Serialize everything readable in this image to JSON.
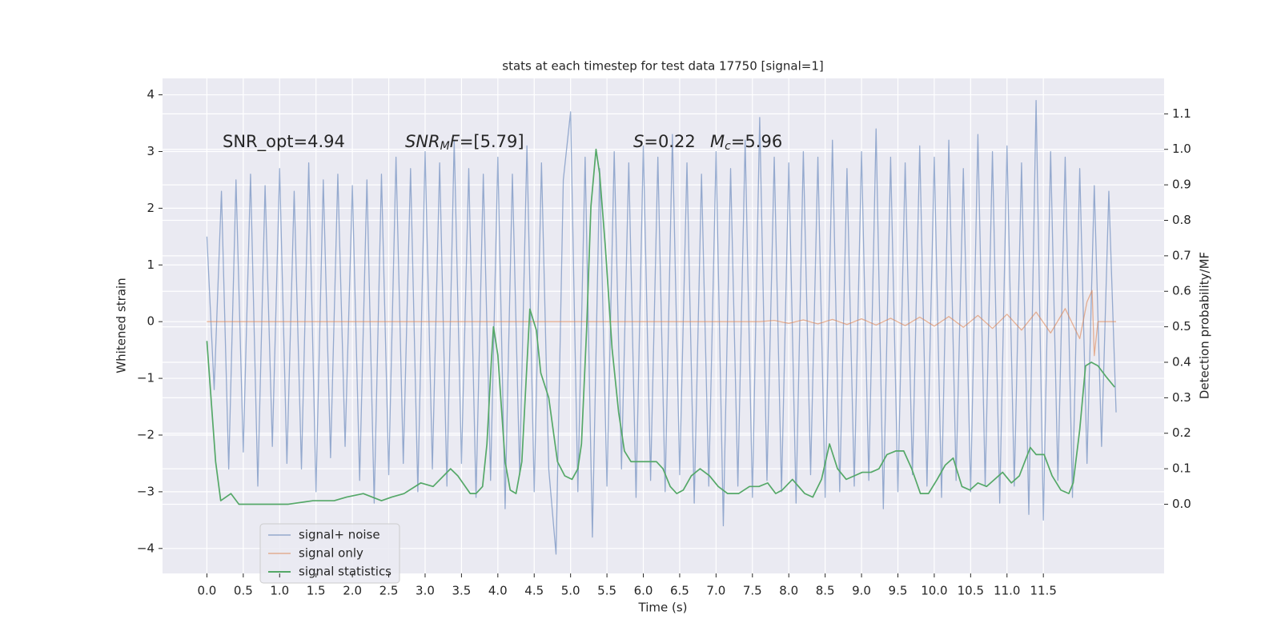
{
  "chart_data": {
    "type": "line",
    "title": "stats at each timestep for test data 17750 [signal=1]",
    "xlabel": "Time (s)",
    "ylabel": "Whitened strain",
    "y2label": "Detection probability/MF",
    "xlim": [
      -0.61,
      13.16
    ],
    "ylim": [
      -4.44,
      4.29
    ],
    "y2lim": [
      -0.195,
      1.2
    ],
    "grid": true,
    "legend_loc": "lower left",
    "xticks": [
      {
        "value": 0,
        "label": "0.0"
      },
      0.5,
      {
        "value": 1,
        "label": "1.0"
      },
      1.5,
      {
        "value": 2,
        "label": "2.0"
      },
      2.5,
      {
        "value": 3,
        "label": "3.0"
      },
      3.5,
      {
        "value": 4,
        "label": "4.0"
      },
      4.5,
      {
        "value": 5,
        "label": "5.0"
      },
      5.5,
      {
        "value": 6,
        "label": "6.0"
      },
      6.5,
      {
        "value": 7,
        "label": "7.0"
      },
      7.5,
      {
        "value": 8,
        "label": "8.0"
      },
      8.5,
      {
        "value": 9,
        "label": "9.0"
      },
      9.5,
      {
        "value": 10,
        "label": "10.0"
      },
      10.5,
      {
        "value": 11,
        "label": "11.0"
      },
      11.5
    ],
    "yticks": [
      {
        "value": -4,
        "label": "−4"
      },
      {
        "value": -3,
        "label": "−3"
      },
      {
        "value": -2,
        "label": "−2"
      },
      {
        "value": -1,
        "label": "−1"
      },
      0,
      1,
      2,
      3,
      4
    ],
    "y2ticks": [
      {
        "value": 0,
        "label": "0.0"
      },
      0.1,
      0.2,
      0.3,
      0.4,
      0.5,
      0.6,
      0.7,
      0.8,
      0.9,
      {
        "value": 1,
        "label": "1.0"
      },
      1.1
    ],
    "annotations": [
      [
        {
          "text": "SNR_opt=4.94",
          "italic": false,
          "sub": false
        }
      ],
      [
        {
          "text": "SNR",
          "italic": true,
          "sub": false
        },
        {
          "text": "M",
          "italic": true,
          "sub": true
        },
        {
          "text": "F",
          "italic": true,
          "sub": false
        },
        {
          "text": "=[5.79]",
          "italic": false,
          "sub": false
        }
      ],
      [
        {
          "text": "S",
          "italic": true,
          "sub": false
        },
        {
          "text": "=0.22",
          "italic": false,
          "sub": false
        }
      ],
      [
        {
          "text": "M",
          "italic": true,
          "sub": false
        },
        {
          "text": "c",
          "italic": true,
          "sub": true
        },
        {
          "text": "=5.96",
          "italic": false,
          "sub": false
        }
      ]
    ],
    "series": [
      {
        "name": "signal+ noise",
        "color": "#4c72b0",
        "axis": "y",
        "x": [
          0,
          0.1,
          0.2,
          0.3,
          0.4,
          0.5,
          0.6,
          0.7,
          0.8,
          0.9,
          1,
          1.1,
          1.2,
          1.3,
          1.4,
          1.5,
          1.6,
          1.7,
          1.8,
          1.9,
          2,
          2.1,
          2.2,
          2.3,
          2.4,
          2.5,
          2.6,
          2.7,
          2.8,
          2.9,
          3,
          3.1,
          3.2,
          3.3,
          3.4,
          3.5,
          3.6,
          3.7,
          3.8,
          3.9,
          4,
          4.1,
          4.2,
          4.3,
          4.4,
          4.5,
          4.6,
          4.7,
          4.8,
          4.9,
          5,
          5.1,
          5.2,
          5.3,
          5.4,
          5.5,
          5.6,
          5.7,
          5.8,
          5.9,
          6,
          6.1,
          6.2,
          6.3,
          6.4,
          6.5,
          6.6,
          6.7,
          6.8,
          6.9,
          7,
          7.1,
          7.2,
          7.3,
          7.4,
          7.5,
          7.6,
          7.7,
          7.8,
          7.9,
          8,
          8.1,
          8.2,
          8.3,
          8.4,
          8.5,
          8.6,
          8.7,
          8.8,
          8.9,
          9,
          9.1,
          9.2,
          9.3,
          9.4,
          9.5,
          9.6,
          9.7,
          9.8,
          9.9,
          10,
          10.1,
          10.2,
          10.3,
          10.4,
          10.5,
          10.6,
          10.7,
          10.8,
          10.9,
          11,
          11.1,
          11.2,
          11.3,
          11.4,
          11.5,
          11.6,
          11.7,
          11.8,
          11.9,
          12,
          12.1,
          12.2,
          12.3,
          12.4,
          12.5
        ],
        "values": [
          1.5,
          -1.2,
          2.3,
          -2.6,
          2.5,
          -2.3,
          2.6,
          -2.9,
          2.4,
          -2.2,
          2.7,
          -2.5,
          2.3,
          -2.6,
          2.8,
          -3.0,
          2.5,
          -2.4,
          2.6,
          -2.2,
          2.4,
          -2.8,
          2.5,
          -3.2,
          2.6,
          -2.7,
          2.9,
          -2.5,
          2.7,
          -3.0,
          3.0,
          -2.6,
          2.8,
          -2.9,
          3.2,
          -2.5,
          2.7,
          -3.1,
          2.6,
          -2.8,
          2.9,
          -3.3,
          2.6,
          -2.7,
          3.1,
          -3.0,
          2.8,
          -2.6,
          -4.1,
          2.5,
          3.7,
          -3.0,
          2.9,
          -3.8,
          2.7,
          -2.9,
          3.0,
          -2.6,
          2.8,
          -3.1,
          3.1,
          -2.8,
          2.9,
          -3.0,
          3.3,
          -2.7,
          2.8,
          -3.2,
          2.6,
          -2.9,
          3.0,
          -3.6,
          2.7,
          -2.9,
          3.2,
          -3.1,
          3.6,
          -2.8,
          2.9,
          -3.0,
          2.8,
          -3.2,
          3.0,
          -2.7,
          2.9,
          -3.1,
          3.2,
          -3.0,
          2.7,
          -2.9,
          3.0,
          -2.8,
          3.4,
          -3.3,
          2.9,
          -3.0,
          2.8,
          -2.7,
          3.1,
          -2.9,
          2.9,
          -3.1,
          3.2,
          -2.8,
          2.7,
          -3.0,
          3.3,
          -2.9,
          3.0,
          -3.2,
          3.1,
          -2.9,
          2.8,
          -3.4,
          3.9,
          -3.5,
          3.0,
          -2.8,
          2.9,
          -3.1,
          2.7,
          -2.5,
          2.4,
          -2.2,
          2.3,
          -1.6
        ]
      },
      {
        "name": "signal only",
        "color": "#dd8452",
        "axis": "y",
        "x": [
          0,
          7.6,
          7.8,
          8,
          8.2,
          8.4,
          8.6,
          8.8,
          9,
          9.2,
          9.4,
          9.6,
          9.8,
          10,
          10.2,
          10.4,
          10.6,
          10.8,
          11,
          11.2,
          11.4,
          11.6,
          11.8,
          12,
          12.1,
          12.17,
          12.2,
          12.25,
          12.5
        ],
        "values": [
          0,
          0,
          0.02,
          -0.03,
          0.03,
          -0.04,
          0.04,
          -0.05,
          0.05,
          -0.06,
          0.06,
          -0.07,
          0.08,
          -0.08,
          0.09,
          -0.1,
          0.11,
          -0.12,
          0.13,
          -0.15,
          0.17,
          -0.2,
          0.23,
          -0.3,
          0.35,
          0.55,
          -0.6,
          0,
          0
        ]
      },
      {
        "name": "signal statistics",
        "color": "#55a868",
        "axis": "y2",
        "x": [
          0,
          0.12,
          0.19,
          0.33,
          0.44,
          0.78,
          1.12,
          1.46,
          1.75,
          1.92,
          2.15,
          2.4,
          2.54,
          2.71,
          2.94,
          3.11,
          3.35,
          3.45,
          3.62,
          3.7,
          3.79,
          3.85,
          3.91,
          3.94,
          4,
          4.1,
          4.17,
          4.25,
          4.33,
          4.44,
          4.53,
          4.59,
          4.7,
          4.82,
          4.92,
          5.02,
          5.1,
          5.15,
          5.22,
          5.28,
          5.35,
          5.4,
          5.48,
          5.57,
          5.66,
          5.74,
          5.83,
          6.01,
          6.18,
          6.27,
          6.37,
          6.46,
          6.55,
          6.66,
          6.78,
          6.91,
          7.03,
          7.16,
          7.31,
          7.46,
          7.59,
          7.71,
          7.82,
          7.91,
          8.05,
          8.22,
          8.33,
          8.45,
          8.56,
          8.67,
          8.79,
          8.9,
          9.01,
          9.13,
          9.24,
          9.35,
          9.47,
          9.58,
          9.69,
          9.81,
          9.92,
          10.04,
          10.15,
          10.26,
          10.38,
          10.49,
          10.6,
          10.72,
          10.83,
          10.94,
          11.06,
          11.17,
          11.32,
          11.4,
          11.51,
          11.62,
          11.74,
          11.85,
          11.91,
          12,
          12.08,
          12.16,
          12.25,
          12.36,
          12.48
        ],
        "values": [
          0.46,
          0.12,
          0.01,
          0.03,
          0,
          0,
          0,
          0.01,
          0.01,
          0.02,
          0.03,
          0.01,
          0.02,
          0.03,
          0.06,
          0.05,
          0.1,
          0.08,
          0.03,
          0.03,
          0.05,
          0.17,
          0.4,
          0.5,
          0.42,
          0.12,
          0.04,
          0.03,
          0.12,
          0.55,
          0.49,
          0.37,
          0.3,
          0.12,
          0.08,
          0.07,
          0.1,
          0.17,
          0.49,
          0.84,
          1.0,
          0.93,
          0.72,
          0.44,
          0.26,
          0.15,
          0.12,
          0.12,
          0.12,
          0.1,
          0.05,
          0.03,
          0.04,
          0.08,
          0.1,
          0.08,
          0.05,
          0.03,
          0.03,
          0.05,
          0.05,
          0.06,
          0.03,
          0.04,
          0.07,
          0.03,
          0.02,
          0.07,
          0.17,
          0.1,
          0.07,
          0.08,
          0.09,
          0.09,
          0.1,
          0.14,
          0.15,
          0.15,
          0.1,
          0.03,
          0.03,
          0.07,
          0.11,
          0.13,
          0.05,
          0.04,
          0.06,
          0.05,
          0.07,
          0.09,
          0.06,
          0.08,
          0.16,
          0.14,
          0.14,
          0.08,
          0.04,
          0.03,
          0.06,
          0.21,
          0.39,
          0.4,
          0.39,
          0.36,
          0.33
        ]
      }
    ]
  }
}
